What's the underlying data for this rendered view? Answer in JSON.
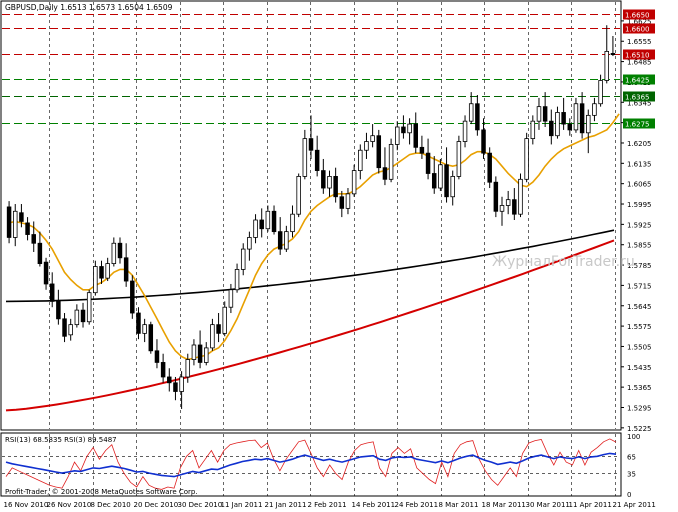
{
  "header": "GBPUSD,Daily  1.6513 1.6573 1.6504 1.6509",
  "watermark": "ЖурналForTrader.ru",
  "copyright": "Profit-Trader, © 2001-2008 MetaQuotes Software Corp.",
  "rsi_header": "RSI(13) 68.5835  RSI(3) 89.5487",
  "chart_data": {
    "type": "candlestick",
    "symbol": "GBPUSD",
    "timeframe": "Daily",
    "ylim": [
      1.5221,
      1.669
    ],
    "y_ticks": [
      "1.6625",
      "1.6555",
      "1.6485",
      "1.6415",
      "1.6345",
      "1.6275",
      "1.6205",
      "1.6135",
      "1.6065",
      "1.5995",
      "1.5925",
      "1.5855",
      "1.5785",
      "1.5715",
      "1.5645",
      "1.5575",
      "1.5505",
      "1.5435",
      "1.5365",
      "1.5295",
      "1.5225"
    ],
    "x_labels": [
      "16 Nov 2010",
      "26 Nov 2010",
      "8 Dec 2010",
      "20 Dec 2010",
      "30 Dec 2010",
      "11 Jan 2011",
      "21 Jan 2011",
      "2 Feb 2011",
      "14 Feb 2011",
      "24 Feb 2011",
      "8 Mar 2011",
      "18 Mar 2011",
      "30 Mar 2011",
      "11 Apr 2011",
      "21 Apr 2011"
    ],
    "levels": [
      {
        "label": "1.6650",
        "value": 1.665,
        "color": "#c00000",
        "style": "dash",
        "label_bg": "#c00000"
      },
      {
        "label": "1.6600",
        "value": 1.66,
        "color": "#c00000",
        "style": "dash",
        "label_bg": "#c00000"
      },
      {
        "label": "1.6510",
        "value": 1.651,
        "color": "#c00000",
        "style": "dash",
        "label_bg": "#c00000"
      },
      {
        "label": "1.6425",
        "value": 1.6425,
        "color": "#008000",
        "style": "dash",
        "label_bg": "#008000"
      },
      {
        "label": "1.6365",
        "value": 1.6365,
        "color": "#006400",
        "style": "dash",
        "label_bg": "#006400"
      },
      {
        "label": "1.6275",
        "value": 1.6275,
        "color": "#008000",
        "style": "dash",
        "label_bg": "#008000"
      }
    ],
    "candles": [
      [
        1.5985,
        1.6005,
        1.586,
        1.588
      ],
      [
        1.588,
        1.5995,
        1.585,
        1.597
      ],
      [
        1.5965,
        1.5995,
        1.5915,
        1.5935
      ],
      [
        1.593,
        1.595,
        1.587,
        1.589
      ],
      [
        1.589,
        1.5935,
        1.583,
        1.586
      ],
      [
        1.586,
        1.59,
        1.578,
        1.579
      ],
      [
        1.5795,
        1.581,
        1.57,
        1.572
      ],
      [
        1.572,
        1.576,
        1.564,
        1.566
      ],
      [
        1.566,
        1.57,
        1.558,
        1.56
      ],
      [
        1.56,
        1.562,
        1.552,
        1.554
      ],
      [
        1.5545,
        1.56,
        1.5525,
        1.558
      ],
      [
        1.558,
        1.565,
        1.557,
        1.563
      ],
      [
        1.563,
        1.5655,
        1.557,
        1.559
      ],
      [
        1.559,
        1.57,
        1.558,
        1.569
      ],
      [
        1.569,
        1.58,
        1.568,
        1.578
      ],
      [
        1.578,
        1.58,
        1.572,
        1.574
      ],
      [
        1.574,
        1.581,
        1.573,
        1.579
      ],
      [
        1.579,
        1.588,
        1.578,
        1.586
      ],
      [
        1.586,
        1.588,
        1.579,
        1.581
      ],
      [
        1.581,
        1.586,
        1.571,
        1.573
      ],
      [
        1.573,
        1.575,
        1.56,
        1.562
      ],
      [
        1.562,
        1.564,
        1.553,
        1.555
      ],
      [
        1.555,
        1.56,
        1.552,
        1.558
      ],
      [
        1.558,
        1.559,
        1.548,
        1.549
      ],
      [
        1.549,
        1.553,
        1.543,
        1.545
      ],
      [
        1.545,
        1.548,
        1.538,
        1.54
      ],
      [
        1.54,
        1.543,
        1.535,
        1.538
      ],
      [
        1.538,
        1.54,
        1.532,
        1.535
      ],
      [
        1.535,
        1.542,
        1.529,
        1.54
      ],
      [
        1.54,
        1.548,
        1.538,
        1.546
      ],
      [
        1.546,
        1.553,
        1.544,
        1.551
      ],
      [
        1.551,
        1.556,
        1.543,
        1.545
      ],
      [
        1.545,
        1.552,
        1.544,
        1.55
      ],
      [
        1.55,
        1.56,
        1.549,
        1.558
      ],
      [
        1.558,
        1.562,
        1.552,
        1.555
      ],
      [
        1.555,
        1.566,
        1.554,
        1.564
      ],
      [
        1.564,
        1.572,
        1.562,
        1.57
      ],
      [
        1.57,
        1.579,
        1.569,
        1.577
      ],
      [
        1.577,
        1.586,
        1.575,
        1.584
      ],
      [
        1.584,
        1.59,
        1.58,
        1.588
      ],
      [
        1.588,
        1.596,
        1.586,
        1.594
      ],
      [
        1.594,
        1.598,
        1.588,
        1.591
      ],
      [
        1.591,
        1.599,
        1.59,
        1.597
      ],
      [
        1.597,
        1.599,
        1.589,
        1.59
      ],
      [
        1.59,
        1.595,
        1.582,
        1.584
      ],
      [
        1.584,
        1.592,
        1.583,
        1.59
      ],
      [
        1.59,
        1.599,
        1.588,
        1.596
      ],
      [
        1.596,
        1.61,
        1.595,
        1.609
      ],
      [
        1.609,
        1.625,
        1.608,
        1.622
      ],
      [
        1.622,
        1.63,
        1.615,
        1.618
      ],
      [
        1.618,
        1.623,
        1.609,
        1.611
      ],
      [
        1.611,
        1.615,
        1.603,
        1.605
      ],
      [
        1.605,
        1.611,
        1.602,
        1.609
      ],
      [
        1.609,
        1.612,
        1.6,
        1.602
      ],
      [
        1.602,
        1.604,
        1.595,
        1.598
      ],
      [
        1.598,
        1.605,
        1.596,
        1.603
      ],
      [
        1.603,
        1.613,
        1.602,
        1.611
      ],
      [
        1.611,
        1.62,
        1.608,
        1.618
      ],
      [
        1.618,
        1.624,
        1.615,
        1.621
      ],
      [
        1.621,
        1.627,
        1.619,
        1.623
      ],
      [
        1.623,
        1.625,
        1.61,
        1.612
      ],
      [
        1.612,
        1.619,
        1.606,
        1.608
      ],
      [
        1.608,
        1.622,
        1.607,
        1.62
      ],
      [
        1.62,
        1.628,
        1.618,
        1.626
      ],
      [
        1.626,
        1.63,
        1.622,
        1.624
      ],
      [
        1.624,
        1.629,
        1.62,
        1.627
      ],
      [
        1.627,
        1.631,
        1.617,
        1.619
      ],
      [
        1.619,
        1.623,
        1.615,
        1.617
      ],
      [
        1.617,
        1.622,
        1.608,
        1.61
      ],
      [
        1.61,
        1.616,
        1.603,
        1.605
      ],
      [
        1.605,
        1.615,
        1.604,
        1.613
      ],
      [
        1.613,
        1.619,
        1.6,
        1.602
      ],
      [
        1.602,
        1.611,
        1.599,
        1.609
      ],
      [
        1.609,
        1.623,
        1.608,
        1.621
      ],
      [
        1.621,
        1.63,
        1.619,
        1.628
      ],
      [
        1.628,
        1.638,
        1.627,
        1.634
      ],
      [
        1.634,
        1.637,
        1.623,
        1.625
      ],
      [
        1.625,
        1.629,
        1.615,
        1.617
      ],
      [
        1.617,
        1.619,
        1.605,
        1.607
      ],
      [
        1.607,
        1.609,
        1.595,
        1.597
      ],
      [
        1.597,
        1.602,
        1.592,
        1.599
      ],
      [
        1.599,
        1.604,
        1.596,
        1.601
      ],
      [
        1.601,
        1.605,
        1.594,
        1.596
      ],
      [
        1.596,
        1.61,
        1.595,
        1.608
      ],
      [
        1.608,
        1.624,
        1.607,
        1.622
      ],
      [
        1.622,
        1.63,
        1.62,
        1.628
      ],
      [
        1.628,
        1.636,
        1.625,
        1.633
      ],
      [
        1.633,
        1.638,
        1.626,
        1.628
      ],
      [
        1.628,
        1.632,
        1.62,
        1.623
      ],
      [
        1.623,
        1.633,
        1.622,
        1.631
      ],
      [
        1.631,
        1.636,
        1.625,
        1.627
      ],
      [
        1.627,
        1.629,
        1.623,
        1.625
      ],
      [
        1.625,
        1.636,
        1.624,
        1.634
      ],
      [
        1.634,
        1.638,
        1.622,
        1.624
      ],
      [
        1.624,
        1.632,
        1.617,
        1.63
      ],
      [
        1.63,
        1.636,
        1.628,
        1.634
      ],
      [
        1.634,
        1.644,
        1.633,
        1.642
      ],
      [
        1.642,
        1.661,
        1.641,
        1.652
      ],
      [
        1.6513,
        1.6573,
        1.6504,
        1.6509
      ]
    ],
    "ma_fast": [
      1.593,
      1.5935,
      1.593,
      1.5925,
      1.5915,
      1.5895,
      1.587,
      1.584,
      1.58,
      1.576,
      1.5735,
      1.5715,
      1.57,
      1.57,
      1.5715,
      1.5725,
      1.574,
      1.576,
      1.577,
      1.577,
      1.575,
      1.5715,
      1.568,
      1.564,
      1.56,
      1.556,
      1.552,
      1.549,
      1.547,
      1.546,
      1.5465,
      1.547,
      1.5475,
      1.549,
      1.55,
      1.5525,
      1.556,
      1.56,
      1.565,
      1.57,
      1.575,
      1.579,
      1.582,
      1.584,
      1.585,
      1.586,
      1.5875,
      1.59,
      1.594,
      1.597,
      1.599,
      1.6005,
      1.602,
      1.603,
      1.603,
      1.603,
      1.604,
      1.6055,
      1.6075,
      1.6095,
      1.6105,
      1.611,
      1.612,
      1.6135,
      1.615,
      1.6165,
      1.617,
      1.617,
      1.616,
      1.615,
      1.614,
      1.613,
      1.6125,
      1.613,
      1.6145,
      1.6165,
      1.6175,
      1.6175,
      1.6165,
      1.615,
      1.6125,
      1.61,
      1.608,
      1.606,
      1.6055,
      1.607,
      1.6095,
      1.6125,
      1.615,
      1.617,
      1.6185,
      1.6195,
      1.6205,
      1.6215,
      1.6225,
      1.623,
      1.624,
      1.625,
      1.6275,
      1.6305
    ],
    "ma_200": {
      "start": 1.566,
      "end": 1.5905,
      "shape": "rising-curve"
    },
    "ma_slow": {
      "start": 1.5285,
      "end": 1.587,
      "shape": "rising"
    },
    "rsi": {
      "ylim": [
        0,
        100
      ],
      "y_ticks": [
        "100",
        "65",
        "35",
        "0"
      ],
      "rsi13": [
        55,
        52,
        50,
        48,
        46,
        44,
        42,
        40,
        38,
        36,
        38,
        40,
        39,
        42,
        45,
        44,
        46,
        48,
        46,
        44,
        41,
        38,
        39,
        36,
        34,
        32,
        31,
        30,
        33,
        36,
        39,
        37,
        40,
        43,
        42,
        46,
        50,
        53,
        56,
        58,
        60,
        59,
        61,
        58,
        55,
        57,
        60,
        64,
        67,
        64,
        61,
        58,
        60,
        57,
        55,
        58,
        61,
        64,
        65,
        66,
        60,
        58,
        62,
        64,
        63,
        64,
        60,
        58,
        56,
        54,
        57,
        54,
        58,
        62,
        65,
        67,
        62,
        58,
        55,
        51,
        53,
        55,
        53,
        57,
        62,
        65,
        67,
        64,
        61,
        64,
        62,
        61,
        64,
        61,
        64,
        65,
        68,
        70,
        68.58
      ],
      "rsi3": [
        30,
        45,
        40,
        35,
        30,
        25,
        20,
        15,
        12,
        10,
        30,
        55,
        40,
        65,
        80,
        60,
        75,
        85,
        55,
        35,
        20,
        12,
        30,
        15,
        10,
        8,
        12,
        10,
        45,
        65,
        75,
        45,
        60,
        75,
        55,
        75,
        85,
        88,
        90,
        92,
        93,
        80,
        88,
        60,
        40,
        60,
        75,
        90,
        93,
        70,
        45,
        30,
        50,
        35,
        25,
        55,
        75,
        85,
        88,
        90,
        45,
        30,
        70,
        80,
        70,
        78,
        45,
        35,
        25,
        18,
        55,
        30,
        70,
        85,
        90,
        92,
        60,
        40,
        25,
        15,
        30,
        45,
        30,
        70,
        88,
        92,
        94,
        70,
        50,
        72,
        55,
        50,
        75,
        50,
        72,
        80,
        90,
        95,
        89.55
      ]
    }
  }
}
